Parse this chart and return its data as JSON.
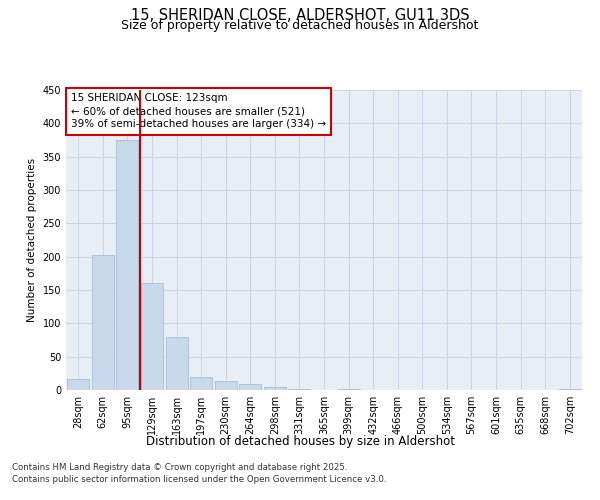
{
  "title1": "15, SHERIDAN CLOSE, ALDERSHOT, GU11 3DS",
  "title2": "Size of property relative to detached houses in Aldershot",
  "xlabel": "Distribution of detached houses by size in Aldershot",
  "ylabel": "Number of detached properties",
  "categories": [
    "28sqm",
    "62sqm",
    "95sqm",
    "129sqm",
    "163sqm",
    "197sqm",
    "230sqm",
    "264sqm",
    "298sqm",
    "331sqm",
    "365sqm",
    "399sqm",
    "432sqm",
    "466sqm",
    "500sqm",
    "534sqm",
    "567sqm",
    "601sqm",
    "635sqm",
    "668sqm",
    "702sqm"
  ],
  "values": [
    17,
    202,
    375,
    160,
    80,
    20,
    14,
    9,
    5,
    2,
    0,
    1,
    0,
    0,
    0,
    0,
    0,
    0,
    0,
    0,
    1
  ],
  "bar_color": "#c8d9ec",
  "bar_edge_color": "#9fb4ce",
  "ylim": [
    0,
    450
  ],
  "yticks": [
    0,
    50,
    100,
    150,
    200,
    250,
    300,
    350,
    400,
    450
  ],
  "vline_color": "#cc0000",
  "annotation_title": "15 SHERIDAN CLOSE: 123sqm",
  "annotation_line1": "← 60% of detached houses are smaller (521)",
  "annotation_line2": "39% of semi-detached houses are larger (334) →",
  "annotation_box_color": "#ffffff",
  "annotation_box_edge": "#cc0000",
  "grid_color": "#ccd5e3",
  "bg_color": "#e8eef6",
  "footnote1": "Contains HM Land Registry data © Crown copyright and database right 2025.",
  "footnote2": "Contains public sector information licensed under the Open Government Licence v3.0.",
  "title1_fontsize": 10.5,
  "title2_fontsize": 9,
  "xlabel_fontsize": 8.5,
  "ylabel_fontsize": 7.5,
  "tick_fontsize": 7,
  "annotation_fontsize": 7.5,
  "footnote_fontsize": 6.2
}
